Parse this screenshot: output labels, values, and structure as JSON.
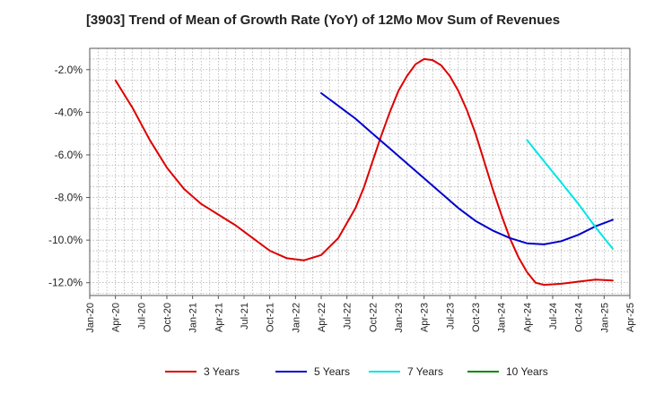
{
  "chart_data": {
    "type": "line",
    "title": "[3903]  Trend of Mean of Growth Rate (YoY) of 12Mo Mov Sum of Revenues",
    "xlabel": "",
    "ylabel": "",
    "ylim": [
      -12.6,
      -1.0
    ],
    "y_ticks": [
      -2.0,
      -4.0,
      -6.0,
      -8.0,
      -10.0,
      -12.0
    ],
    "y_tick_labels": [
      "-2.0%",
      "-4.0%",
      "-6.0%",
      "-8.0%",
      "-10.0%",
      "-12.0%"
    ],
    "x_tick_labels": [
      "Jan-20",
      "Apr-20",
      "Jul-20",
      "Oct-20",
      "Jan-21",
      "Apr-21",
      "Jul-21",
      "Oct-21",
      "Jan-22",
      "Apr-22",
      "Jul-22",
      "Oct-22",
      "Jan-23",
      "Apr-23",
      "Jul-23",
      "Oct-23",
      "Jan-24",
      "Apr-24",
      "Jul-24",
      "Oct-24",
      "Jan-25",
      "Apr-25"
    ],
    "x_range_months": [
      0,
      63
    ],
    "grid": true,
    "legend_position": "bottom",
    "series": [
      {
        "name": "3 Years",
        "color": "#dd0000",
        "points": [
          [
            3,
            -2.5
          ],
          [
            5,
            -3.8
          ],
          [
            7,
            -5.3
          ],
          [
            9,
            -6.6
          ],
          [
            11,
            -7.6
          ],
          [
            13,
            -8.3
          ],
          [
            15,
            -8.8
          ],
          [
            17,
            -9.3
          ],
          [
            19,
            -9.9
          ],
          [
            21,
            -10.5
          ],
          [
            23,
            -10.85
          ],
          [
            25,
            -10.95
          ],
          [
            27,
            -10.7
          ],
          [
            29,
            -9.9
          ],
          [
            31,
            -8.5
          ],
          [
            32,
            -7.5
          ],
          [
            33,
            -6.3
          ],
          [
            34,
            -5.1
          ],
          [
            35,
            -4.0
          ],
          [
            36,
            -3.0
          ],
          [
            37,
            -2.3
          ],
          [
            38,
            -1.75
          ],
          [
            39,
            -1.5
          ],
          [
            40,
            -1.55
          ],
          [
            41,
            -1.8
          ],
          [
            42,
            -2.3
          ],
          [
            43,
            -3.0
          ],
          [
            44,
            -3.9
          ],
          [
            45,
            -5.0
          ],
          [
            46,
            -6.3
          ],
          [
            47,
            -7.6
          ],
          [
            48,
            -8.8
          ],
          [
            49,
            -9.9
          ],
          [
            50,
            -10.8
          ],
          [
            51,
            -11.5
          ],
          [
            52,
            -12.0
          ],
          [
            53,
            -12.1
          ],
          [
            55,
            -12.05
          ],
          [
            57,
            -11.95
          ],
          [
            59,
            -11.85
          ],
          [
            61,
            -11.9
          ]
        ]
      },
      {
        "name": "5 Years",
        "color": "#0000cc",
        "points": [
          [
            27,
            -3.1
          ],
          [
            29,
            -3.7
          ],
          [
            31,
            -4.3
          ],
          [
            33,
            -5.0
          ],
          [
            35,
            -5.7
          ],
          [
            37,
            -6.4
          ],
          [
            39,
            -7.1
          ],
          [
            41,
            -7.8
          ],
          [
            43,
            -8.5
          ],
          [
            45,
            -9.1
          ],
          [
            47,
            -9.55
          ],
          [
            49,
            -9.9
          ],
          [
            51,
            -10.15
          ],
          [
            53,
            -10.2
          ],
          [
            55,
            -10.05
          ],
          [
            57,
            -9.75
          ],
          [
            59,
            -9.35
          ],
          [
            61,
            -9.05
          ]
        ]
      },
      {
        "name": "7 Years",
        "color": "#00e5e5",
        "points": [
          [
            51,
            -5.3
          ],
          [
            53,
            -6.3
          ],
          [
            55,
            -7.3
          ],
          [
            57,
            -8.3
          ],
          [
            59,
            -9.4
          ],
          [
            61,
            -10.4
          ]
        ]
      },
      {
        "name": "10 Years",
        "color": "#008800",
        "points": []
      }
    ]
  }
}
